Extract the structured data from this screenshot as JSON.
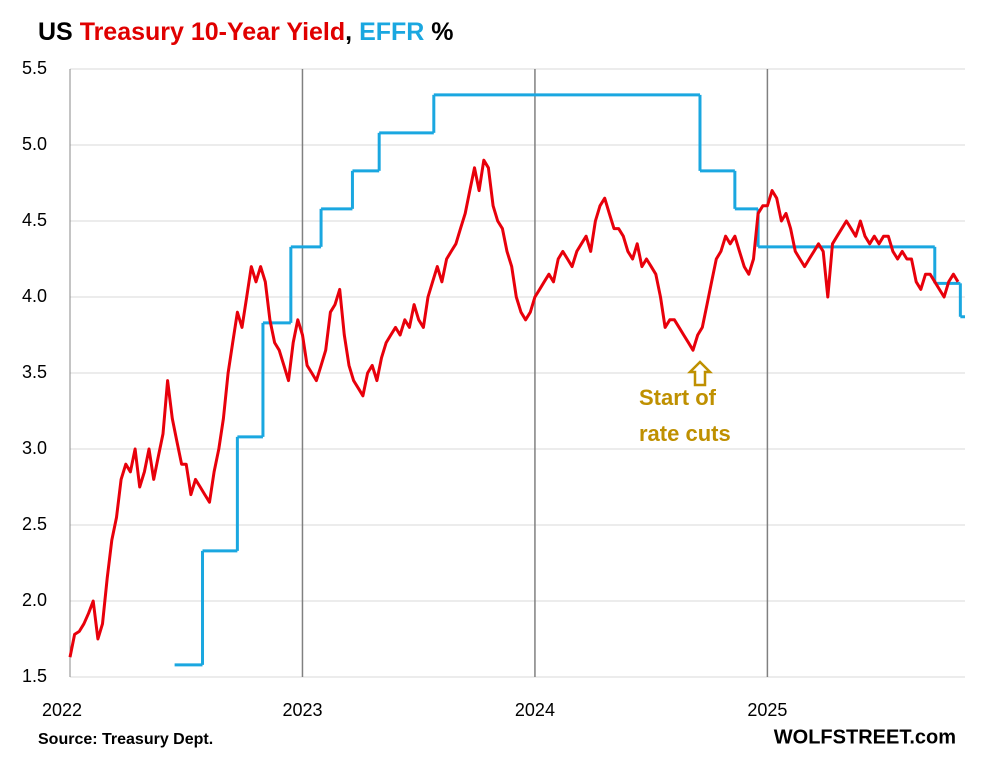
{
  "chart_data": {
    "type": "line",
    "title_parts": [
      {
        "text": "US ",
        "color": "#000000"
      },
      {
        "text": "Treasury 10-Year Yield",
        "color": "#e00000"
      },
      {
        "text": ", ",
        "color": "#000000"
      },
      {
        "text": "EFFR",
        "color": "#1aa7e0"
      },
      {
        "text": " %",
        "color": "#000000"
      }
    ],
    "xlim": [
      2022,
      2025.85
    ],
    "xticks": [
      2022,
      2023,
      2024,
      2025
    ],
    "ylim": [
      1.5,
      5.5
    ],
    "yticks": [
      1.5,
      {
        "value": 2,
        "label": "2.0"
      },
      2.5,
      {
        "value": 3,
        "label": "3.0"
      },
      3.5,
      {
        "value": 4,
        "label": "4.0"
      },
      4.5,
      {
        "value": 5,
        "label": "5.0"
      },
      5.5
    ],
    "grid": true,
    "series": [
      {
        "name": "Treasury 10-Year Yield",
        "color": "#e8000b",
        "step": false,
        "x": [
          2022.0,
          2022.02,
          2022.04,
          2022.06,
          2022.08,
          2022.1,
          2022.12,
          2022.14,
          2022.16,
          2022.18,
          2022.2,
          2022.22,
          2022.24,
          2022.26,
          2022.28,
          2022.3,
          2022.32,
          2022.34,
          2022.36,
          2022.38,
          2022.4,
          2022.42,
          2022.44,
          2022.46,
          2022.48,
          2022.5,
          2022.52,
          2022.54,
          2022.56,
          2022.58,
          2022.6,
          2022.62,
          2022.64,
          2022.66,
          2022.68,
          2022.7,
          2022.72,
          2022.74,
          2022.76,
          2022.78,
          2022.8,
          2022.82,
          2022.84,
          2022.86,
          2022.88,
          2022.9,
          2022.92,
          2022.94,
          2022.96,
          2022.98,
          2023.0,
          2023.02,
          2023.04,
          2023.06,
          2023.08,
          2023.1,
          2023.12,
          2023.14,
          2023.16,
          2023.18,
          2023.2,
          2023.22,
          2023.24,
          2023.26,
          2023.28,
          2023.3,
          2023.32,
          2023.34,
          2023.36,
          2023.38,
          2023.4,
          2023.42,
          2023.44,
          2023.46,
          2023.48,
          2023.5,
          2023.52,
          2023.54,
          2023.56,
          2023.58,
          2023.6,
          2023.62,
          2023.64,
          2023.66,
          2023.68,
          2023.7,
          2023.72,
          2023.74,
          2023.76,
          2023.78,
          2023.8,
          2023.82,
          2023.84,
          2023.86,
          2023.88,
          2023.9,
          2023.92,
          2023.94,
          2023.96,
          2023.98,
          2024.0,
          2024.02,
          2024.04,
          2024.06,
          2024.08,
          2024.1,
          2024.12,
          2024.14,
          2024.16,
          2024.18,
          2024.2,
          2024.22,
          2024.24,
          2024.26,
          2024.28,
          2024.3,
          2024.32,
          2024.34,
          2024.36,
          2024.38,
          2024.4,
          2024.42,
          2024.44,
          2024.46,
          2024.48,
          2024.5,
          2024.52,
          2024.54,
          2024.56,
          2024.58,
          2024.6,
          2024.62,
          2024.64,
          2024.66,
          2024.68,
          2024.7,
          2024.72,
          2024.74,
          2024.76,
          2024.78,
          2024.8,
          2024.82,
          2024.84,
          2024.86,
          2024.88,
          2024.9,
          2024.92,
          2024.94,
          2024.96,
          2024.98,
          2025.0,
          2025.02,
          2025.04,
          2025.06,
          2025.08,
          2025.1,
          2025.12,
          2025.14,
          2025.16,
          2025.18,
          2025.2,
          2025.22,
          2025.24,
          2025.26,
          2025.28,
          2025.3,
          2025.32,
          2025.34,
          2025.36,
          2025.38,
          2025.4,
          2025.42,
          2025.44,
          2025.46,
          2025.48,
          2025.5,
          2025.52,
          2025.54,
          2025.56,
          2025.58,
          2025.6,
          2025.62,
          2025.64,
          2025.66,
          2025.68,
          2025.7,
          2025.72,
          2025.74,
          2025.76,
          2025.78,
          2025.8,
          2025.82
        ],
        "values": [
          1.63,
          1.78,
          1.8,
          1.85,
          1.92,
          2.0,
          1.75,
          1.85,
          2.15,
          2.4,
          2.55,
          2.8,
          2.9,
          2.85,
          3.0,
          2.75,
          2.85,
          3.0,
          2.8,
          2.95,
          3.1,
          3.45,
          3.2,
          3.05,
          2.9,
          2.9,
          2.7,
          2.8,
          2.75,
          2.7,
          2.65,
          2.85,
          3.0,
          3.2,
          3.5,
          3.7,
          3.9,
          3.8,
          4.0,
          4.2,
          4.1,
          4.2,
          4.1,
          3.85,
          3.7,
          3.65,
          3.55,
          3.45,
          3.7,
          3.85,
          3.75,
          3.55,
          3.5,
          3.45,
          3.55,
          3.65,
          3.9,
          3.95,
          4.05,
          3.75,
          3.55,
          3.45,
          3.4,
          3.35,
          3.5,
          3.55,
          3.45,
          3.6,
          3.7,
          3.75,
          3.8,
          3.75,
          3.85,
          3.8,
          3.95,
          3.85,
          3.8,
          4.0,
          4.1,
          4.2,
          4.1,
          4.25,
          4.3,
          4.35,
          4.45,
          4.55,
          4.7,
          4.85,
          4.7,
          4.9,
          4.85,
          4.6,
          4.5,
          4.45,
          4.3,
          4.2,
          4.0,
          3.9,
          3.85,
          3.9,
          4.0,
          4.05,
          4.1,
          4.15,
          4.1,
          4.25,
          4.3,
          4.25,
          4.2,
          4.3,
          4.35,
          4.4,
          4.3,
          4.5,
          4.6,
          4.65,
          4.55,
          4.45,
          4.45,
          4.4,
          4.3,
          4.25,
          4.35,
          4.2,
          4.25,
          4.2,
          4.15,
          4.0,
          3.8,
          3.85,
          3.85,
          3.8,
          3.75,
          3.7,
          3.65,
          3.75,
          3.8,
          3.95,
          4.1,
          4.25,
          4.3,
          4.4,
          4.35,
          4.4,
          4.3,
          4.2,
          4.15,
          4.25,
          4.55,
          4.6,
          4.6,
          4.7,
          4.65,
          4.5,
          4.55,
          4.45,
          4.3,
          4.25,
          4.2,
          4.25,
          4.3,
          4.35,
          4.3,
          4.0,
          4.35,
          4.4,
          4.45,
          4.5,
          4.45,
          4.4,
          4.5,
          4.4,
          4.35,
          4.4,
          4.35,
          4.4,
          4.4,
          4.3,
          4.25,
          4.3,
          4.25,
          4.25,
          4.1,
          4.05,
          4.15,
          4.15,
          4.1,
          4.05,
          4.0,
          4.1,
          4.15,
          4.1
        ]
      },
      {
        "name": "EFFR",
        "color": "#1aa7e0",
        "step": true,
        "x": [
          2022.45,
          2022.57,
          2022.72,
          2022.83,
          2022.95,
          2023.08,
          2023.215,
          2023.33,
          2023.565,
          2024.71,
          2024.86,
          2024.96,
          2025.72,
          2025.83
        ],
        "values": [
          1.58,
          2.33,
          3.08,
          3.83,
          4.33,
          4.58,
          4.83,
          5.08,
          5.33,
          4.83,
          4.58,
          4.33,
          4.09,
          3.87
        ]
      }
    ],
    "annotations": [
      "Start of",
      "rate cuts"
    ],
    "source": "Source: Treasury Dept.",
    "brand": "WOLFSTREET.com"
  }
}
